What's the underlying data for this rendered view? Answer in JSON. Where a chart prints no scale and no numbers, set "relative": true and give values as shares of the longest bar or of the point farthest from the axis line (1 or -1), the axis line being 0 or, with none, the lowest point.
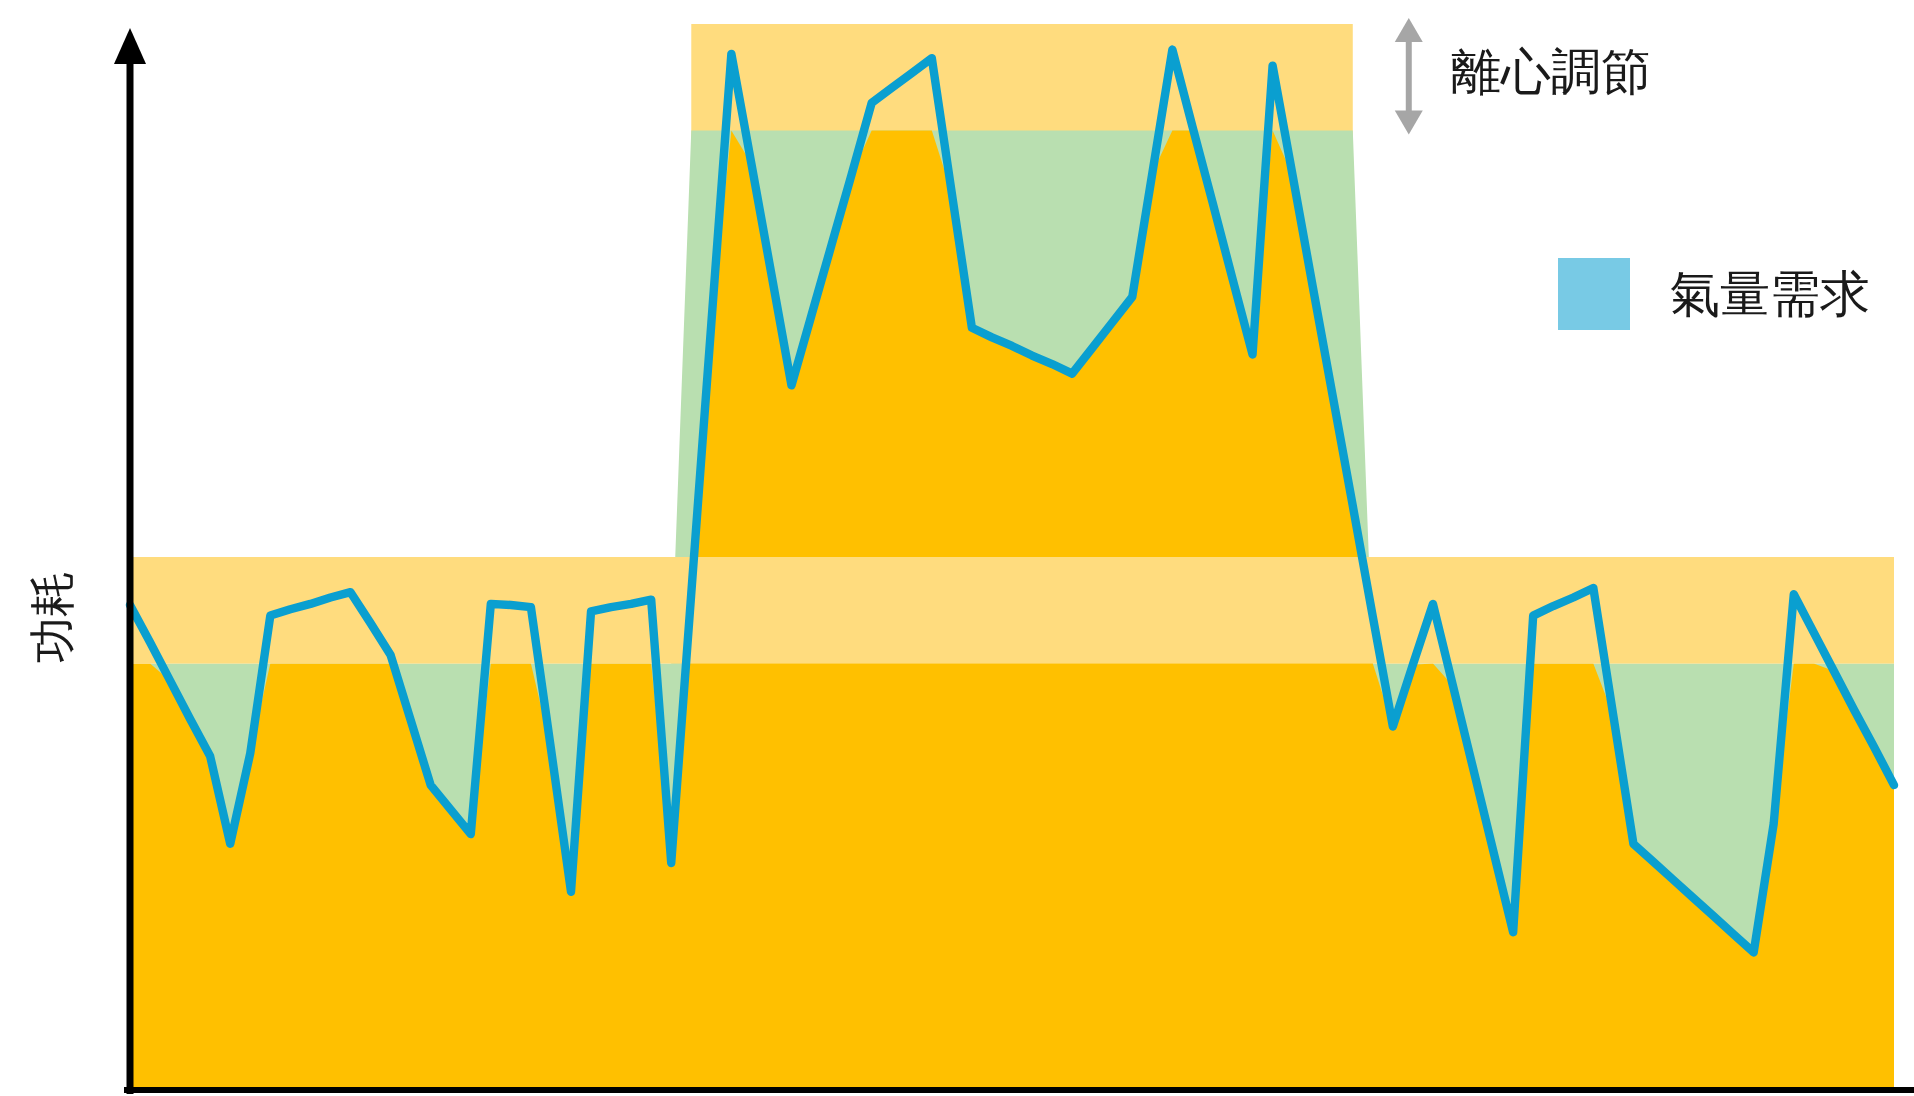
{
  "chart_data": {
    "type": "line",
    "relative": true,
    "legend": "top right",
    "ylabel": "功耗",
    "annotations": [
      "離心調節"
    ],
    "bands": [
      {
        "axis": "y",
        "from": 0.4,
        "to": 0.5,
        "color": "#ffdc7e"
      }
    ],
    "categories": [
      null,
      null,
      null,
      null,
      null,
      null,
      null,
      null,
      null,
      null,
      null,
      null,
      null,
      null,
      null,
      null,
      null,
      null,
      null,
      null,
      null,
      null,
      null,
      null,
      null,
      null,
      null,
      null,
      null,
      null,
      null,
      null,
      null,
      null,
      null,
      null,
      null,
      null,
      null,
      null,
      null,
      null,
      null,
      null,
      null,
      null,
      null,
      null,
      null,
      null,
      null,
      null,
      null,
      null,
      null,
      null,
      null,
      null,
      null,
      null,
      null,
      null,
      null,
      null,
      null,
      null,
      null,
      null,
      null,
      null,
      null,
      null,
      null,
      null,
      null,
      null,
      null,
      null,
      null,
      null,
      null,
      null,
      null,
      null,
      null,
      null,
      null,
      null,
      null
    ],
    "series": [
      {
        "type": "area",
        "color": "#ffdc7e",
        "values": [
          null,
          null,
          null,
          null,
          null,
          null,
          null,
          null,
          null,
          null,
          null,
          null,
          null,
          null,
          null,
          null,
          null,
          null,
          null,
          null,
          null,
          null,
          null,
          null,
          null,
          null,
          null,
          null,
          1,
          1,
          1,
          1,
          1,
          1,
          1,
          1,
          1,
          1,
          1,
          1,
          1,
          1,
          1,
          1,
          1,
          1,
          1,
          1,
          1,
          1,
          1,
          1,
          1,
          1,
          1,
          1,
          1,
          1,
          1,
          1,
          1,
          1,
          null,
          null,
          null,
          null,
          null,
          null,
          null,
          null,
          null,
          null,
          null,
          null,
          null,
          null,
          null,
          null,
          null,
          null,
          null,
          null,
          null,
          null,
          null,
          null,
          null,
          null,
          null
        ]
      },
      {
        "type": "area",
        "color": "#b9dfb0",
        "values": [
          null,
          0.4,
          0.4,
          0.4,
          0.4,
          0.4,
          0.4,
          0.4,
          0.4,
          0.4,
          0.4,
          0.4,
          0.4,
          0.4,
          0.4,
          0.4,
          0.4,
          0.4,
          0.4,
          0.4,
          0.4,
          0.4,
          0.4,
          0.4,
          0.4,
          0.4,
          0.4,
          0.4,
          0.9,
          0.9,
          0.9,
          0.9,
          0.9,
          0.9,
          0.9,
          0.9,
          0.9,
          0.9,
          0.9,
          0.9,
          0.9,
          0.9,
          0.9,
          0.9,
          0.9,
          0.9,
          0.9,
          0.9,
          0.9,
          0.9,
          0.9,
          0.9,
          0.9,
          0.9,
          0.9,
          0.9,
          0.9,
          0.9,
          0.9,
          0.9,
          0.9,
          0.9,
          0.4,
          0.4,
          0.4,
          0.4,
          0.4,
          0.4,
          0.4,
          0.4,
          0.4,
          0.4,
          0.4,
          0.4,
          0.4,
          0.4,
          0.4,
          0.4,
          0.4,
          0.4,
          0.4,
          0.4,
          0.4,
          0.4,
          0.4,
          0.4,
          0.4,
          0.4,
          0.4
        ]
      },
      {
        "type": "area",
        "color": "#ffc000",
        "values": [
          0.4,
          0.4,
          0.384,
          0.348,
          0.313,
          0.231,
          0.316,
          0.4,
          0.4,
          0.4,
          0.4,
          0.4,
          0.4,
          0.4,
          0.347,
          0.286,
          0.263,
          0.24,
          0.4,
          0.4,
          0.4,
          0.32,
          0.186,
          0.4,
          0.4,
          0.4,
          0.4,
          0.213,
          0.5,
          0.719,
          0.9,
          0.869,
          0.765,
          0.661,
          0.727,
          0.793,
          0.859,
          0.9,
          0.9,
          0.9,
          0.9,
          0.841,
          0.715,
          0.706,
          0.698,
          0.689,
          0.681,
          0.672,
          0.696,
          0.72,
          0.744,
          0.86,
          0.9,
          0.9,
          0.833,
          0.761,
          0.69,
          0.9,
          0.858,
          0.754,
          0.651,
          0.548,
          0.4,
          0.341,
          0.399,
          0.4,
          0.379,
          0.302,
          0.225,
          0.148,
          0.4,
          0.4,
          0.4,
          0.4,
          0.351,
          0.231,
          0.214,
          0.197,
          0.18,
          0.163,
          0.146,
          0.129,
          0.25,
          0.4,
          0.4,
          0.393,
          0.357,
          0.322,
          0.286
        ]
      },
      {
        "name": "氣量需求",
        "color": "#0a9fd0",
        "values": [
          0.455,
          0.42,
          0.384,
          0.348,
          0.313,
          0.231,
          0.316,
          0.445,
          0.451,
          0.456,
          0.462,
          0.467,
          0.438,
          0.408,
          0.347,
          0.286,
          0.263,
          0.24,
          0.456,
          0.455,
          0.453,
          0.32,
          0.186,
          0.449,
          0.453,
          0.456,
          0.46,
          0.213,
          0.466,
          0.719,
          0.972,
          0.869,
          0.765,
          0.661,
          0.727,
          0.793,
          0.859,
          0.926,
          0.94,
          0.954,
          0.968,
          0.841,
          0.715,
          0.706,
          0.698,
          0.689,
          0.681,
          0.672,
          0.696,
          0.72,
          0.744,
          0.86,
          0.976,
          0.904,
          0.833,
          0.761,
          0.69,
          0.961,
          0.858,
          0.754,
          0.651,
          0.548,
          0.444,
          0.341,
          0.399,
          0.456,
          0.379,
          0.302,
          0.225,
          0.148,
          0.445,
          0.454,
          0.462,
          0.471,
          0.351,
          0.231,
          0.214,
          0.197,
          0.18,
          0.163,
          0.146,
          0.129,
          0.25,
          0.465,
          0.429,
          0.393,
          0.357,
          0.322,
          0.286
        ]
      }
    ]
  }
}
